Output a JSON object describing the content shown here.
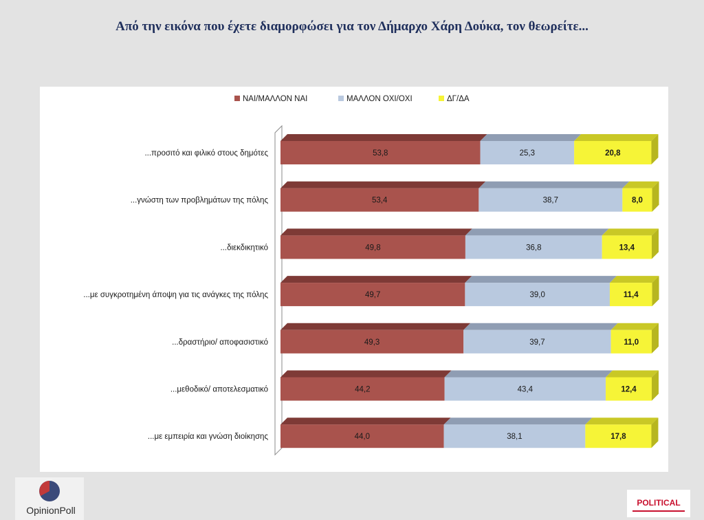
{
  "title": "Από την εικόνα που έχετε διαμορφώσει για τον Δήμαρχο Χάρη Δούκα, τον θεωρείτε...",
  "logos": {
    "opinion_poll": "OpinionPoll",
    "political": "POLITICAL"
  },
  "colors": {
    "yes": "#a9534d",
    "no": "#b9c9df",
    "dk": "#f6f437",
    "title": "#1f2f5c"
  },
  "chart_data": {
    "type": "bar",
    "orientation": "horizontal",
    "stacked": true,
    "legend_position": "top",
    "categories": [
      "...προσιτό και φιλικό στους δημότες",
      "...γνώστη των προβλημάτων της πόλης",
      "...διεκδικητικό",
      "...με συγκροτημένη άποψη για τις ανάγκες της πόλης",
      "...δραστήριο/ αποφασιστικό",
      "...μεθοδικό/ αποτελεσματικό",
      "...με εμπειρία και γνώση διοίκησης"
    ],
    "series": [
      {
        "name": "ΝΑΙ/ΜΑΛΛΟΝ ΝΑΙ",
        "values": [
          53.8,
          53.4,
          49.8,
          49.7,
          49.3,
          44.2,
          44.0
        ]
      },
      {
        "name": "ΜΑΛΛΟΝ ΟΧΙ/ΟΧΙ",
        "values": [
          25.3,
          38.7,
          36.8,
          39.0,
          39.7,
          43.4,
          38.1
        ]
      },
      {
        "name": "ΔΓ/ΔΑ",
        "values": [
          20.8,
          8.0,
          13.4,
          11.4,
          11.0,
          12.4,
          17.8
        ]
      }
    ],
    "data_labels": [
      [
        "53,8",
        "25,3",
        "20,8"
      ],
      [
        "53,4",
        "38,7",
        "8,0"
      ],
      [
        "49,8",
        "36,8",
        "13,4"
      ],
      [
        "49,7",
        "39,0",
        "11,4"
      ],
      [
        "49,3",
        "39,7",
        "11,0"
      ],
      [
        "44,2",
        "43,4",
        "12,4"
      ],
      [
        "44,0",
        "38,1",
        "17,8"
      ]
    ],
    "xlim": [
      0,
      100
    ],
    "grid": false
  }
}
